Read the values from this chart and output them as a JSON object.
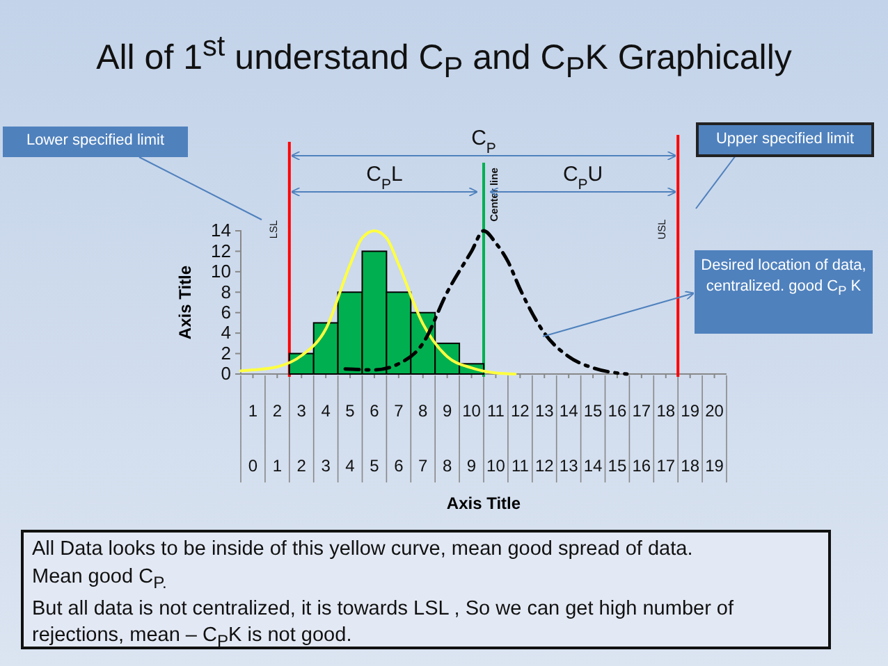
{
  "chart_data": {
    "type": "bar",
    "title": "All of 1$^{st}$ understand C$_{P}$ and C$_{P}$K Graphically",
    "xlabel": "Axis Title",
    "ylabel": "Axis Title",
    "x": [
      3,
      4,
      5,
      6,
      7,
      8,
      9,
      10
    ],
    "xlim": [
      0.5,
      20.5
    ],
    "xticks": [
      1,
      2,
      3,
      4,
      5,
      6,
      7,
      8,
      9,
      10,
      11,
      12,
      13,
      14,
      15,
      16,
      17,
      18,
      19,
      20
    ],
    "x2lim": [
      -0.5,
      19.5
    ],
    "x2ticks": [
      0,
      1,
      2,
      3,
      4,
      5,
      6,
      7,
      8,
      9,
      10,
      11,
      12,
      13,
      14,
      15,
      16,
      17,
      18,
      19
    ],
    "ylim": [
      0,
      14
    ],
    "yticks": [
      0,
      2,
      4,
      6,
      8,
      10,
      12,
      14
    ],
    "grid": false,
    "series": [
      {
        "color": "#00b050",
        "values": [
          2,
          5,
          8,
          12,
          8,
          6,
          3,
          1
        ]
      },
      {
        "type": "line",
        "color": "#ffff40",
        "x": [
          0.5,
          1,
          2,
          3,
          4,
          5,
          5.5,
          6,
          6.5,
          7,
          8,
          9,
          10,
          11,
          11.8
        ],
        "values": [
          0.3,
          0.4,
          0.7,
          1.8,
          4.4,
          10.7,
          13.3,
          14,
          13.3,
          10.7,
          4.9,
          1.7,
          0.6,
          0.1,
          0
        ]
      },
      {
        "type": "line",
        "color": "#000000",
        "line_style": "dashed",
        "x": [
          4.8,
          6,
          7,
          8,
          9,
          10,
          10.5,
          11,
          11.5,
          12,
          13,
          14,
          15,
          16.4
        ],
        "values": [
          0.5,
          0.4,
          1,
          3,
          8,
          12,
          14,
          12.8,
          11,
          8.3,
          4,
          1.7,
          0.6,
          0
        ]
      }
    ],
    "ref_lines": [
      {
        "axis": "x",
        "value": 2.5,
        "label": "LSL",
        "color": "#ff0000"
      },
      {
        "axis": "x",
        "value": 18.5,
        "label": "USL",
        "color": "#ff0000"
      },
      {
        "axis": "x",
        "value": 10.5,
        "label": "Center line",
        "color": "#00b050"
      }
    ],
    "annotations": [
      "C$_{P}$",
      "C$_{P}$L",
      "C$_{P}$U",
      "Lower specified limit",
      "Upper specified limit",
      "Desired location of data, centralized. good  C$_{P}$ K",
      "All Data looks to be inside of this yellow curve, mean good spread of data.",
      "Mean good C$_{P.}$",
      "But all data is not centralized, it is towards LSL , So we can get high number of",
      "rejections, mean – C$_{P}$K is not good."
    ]
  }
}
